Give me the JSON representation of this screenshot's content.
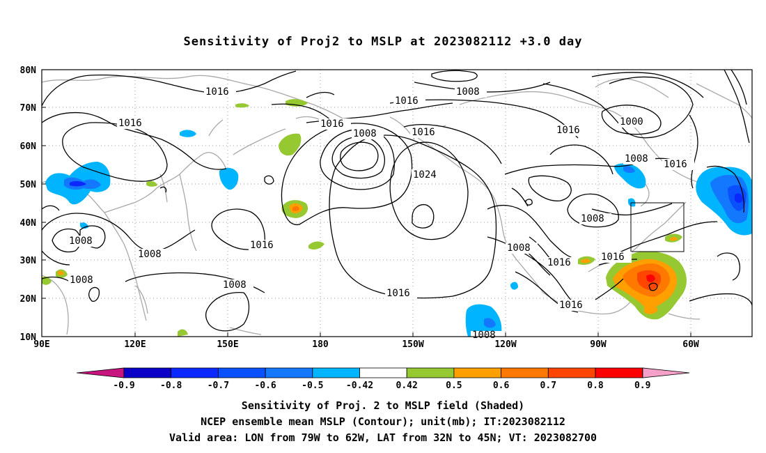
{
  "title": "Sensitivity of Proj2 to MSLP at 2023082112 +3.0 day",
  "map": {
    "lat_labels": [
      "80N",
      "70N",
      "60N",
      "50N",
      "40N",
      "30N",
      "20N",
      "10N"
    ],
    "lon_labels": [
      "90E",
      "120E",
      "150E",
      "180",
      "150W",
      "120W",
      "90W",
      "60W"
    ],
    "contour_labels": [
      "1016",
      "1008",
      "1016",
      "1016",
      "1016",
      "1008",
      "1016",
      "1016",
      "1024",
      "1000",
      "1008",
      "1016",
      "1008",
      "1008",
      "1008",
      "1016",
      "1008",
      "1008",
      "1016",
      "1016",
      "1016",
      "1008",
      "1016",
      "1008"
    ],
    "colors": {
      "coast": "#a8a8a8",
      "contour": "#000000",
      "grid": "#9a9a9a"
    }
  },
  "colorbar": {
    "tick_labels": [
      "-0.9",
      "-0.8",
      "-0.7",
      "-0.6",
      "-0.5",
      "-0.42",
      "0.42",
      "0.5",
      "0.6",
      "0.7",
      "0.8",
      "0.9"
    ],
    "left_cap_color": "#c8147f",
    "right_cap_color": "#f5a0c8",
    "colors": [
      "#0a00c8",
      "#0a28ff",
      "#0a50ff",
      "#1478ff",
      "#00b4ff",
      "#ffffff",
      "#96c832",
      "#ffa000",
      "#ff7800",
      "#ff4600",
      "#ff0000"
    ]
  },
  "footer": {
    "line1": "Sensitivity of Proj. 2 to MSLP field (Shaded)",
    "line2": "NCEP ensemble mean MSLP (Contour); unit(mb); IT:2023082112",
    "line3": "Valid area: LON from 79W to 62W, LAT from 32N to 45N; VT: 2023082700"
  }
}
